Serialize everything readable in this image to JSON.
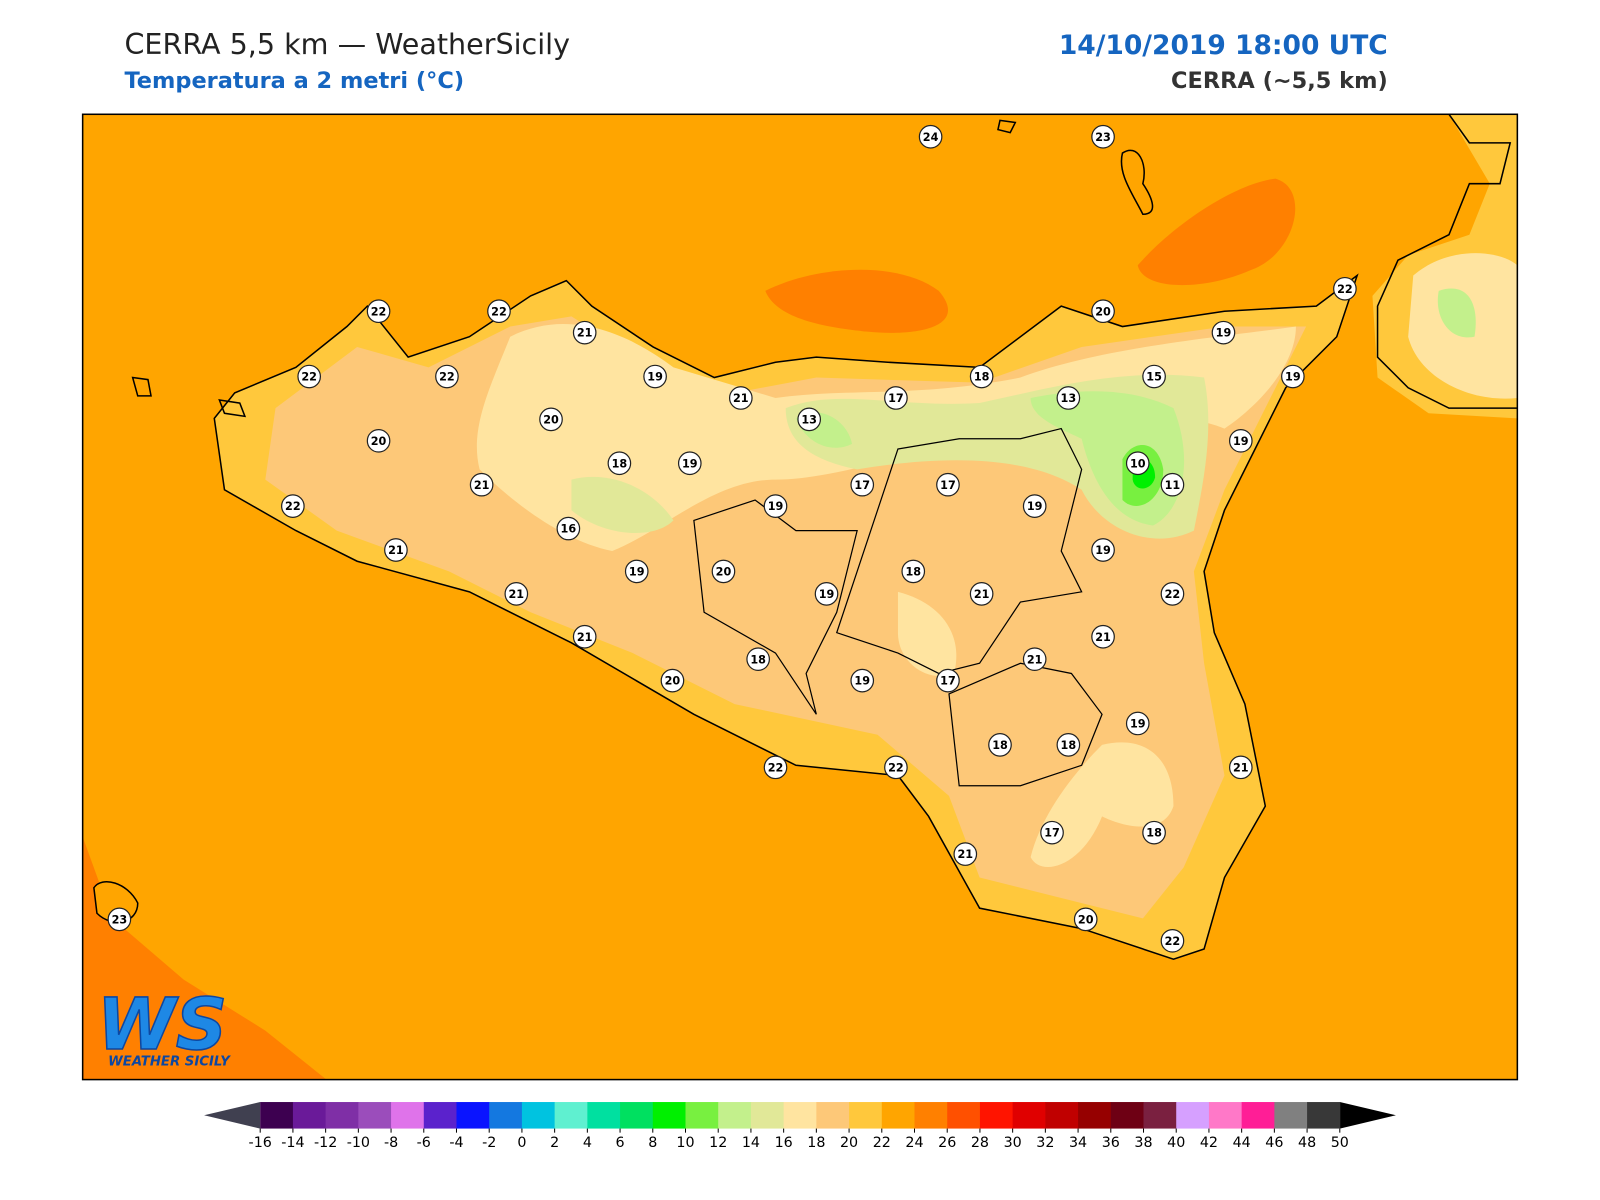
{
  "header": {
    "title": "CERRA 5,5 km — WeatherSicily",
    "subtitle": "Temperatura a 2 metri (°C)",
    "datetime": "14/10/2019 18:00 UTC",
    "model": "CERRA (~5,5 km)"
  },
  "stations": [
    24,
    23,
    22,
    22,
    21,
    20,
    19,
    22,
    22,
    22,
    19,
    21,
    17,
    18,
    13,
    15,
    19,
    20,
    13,
    20,
    18,
    19,
    19,
    10,
    11,
    21,
    17,
    17,
    19,
    19,
    22,
    16,
    21,
    19,
    19,
    20,
    18,
    21,
    19,
    21,
    22,
    21,
    21,
    18,
    21,
    20,
    19,
    17,
    19,
    18,
    18,
    21,
    22,
    22,
    21,
    17,
    18,
    20,
    22,
    23
  ],
  "colorbar": {
    "ticks": [
      -16,
      -14,
      -12,
      -10,
      -8,
      -6,
      -4,
      -2,
      0,
      2,
      4,
      6,
      8,
      10,
      12,
      14,
      16,
      18,
      20,
      22,
      24,
      26,
      28,
      30,
      32,
      34,
      36,
      38,
      40,
      42,
      44,
      46,
      48,
      50
    ],
    "colors": [
      "#3d0050",
      "#6a1a99",
      "#7f2fa6",
      "#9b4dbb",
      "#df73ea",
      "#5b22cc",
      "#0a14ff",
      "#1478e0",
      "#00c3e0",
      "#5ff0d0",
      "#00e0a0",
      "#00e060",
      "#00f000",
      "#78f040",
      "#c3f08c",
      "#e1e898",
      "#ffe4a0",
      "#fdc878",
      "#ffc83c",
      "#ffa500",
      "#ff8000",
      "#ff5000",
      "#ff1400",
      "#e00000",
      "#c00000",
      "#960000",
      "#6e0014",
      "#7a2040",
      "#d6a0ff",
      "#ff78c8",
      "#ff1e96",
      "#808080",
      "#383838"
    ],
    "under_color": "#404050",
    "over_color": "#000000"
  },
  "logo": {
    "mark": "WS",
    "text": "WEATHER SICILY"
  }
}
